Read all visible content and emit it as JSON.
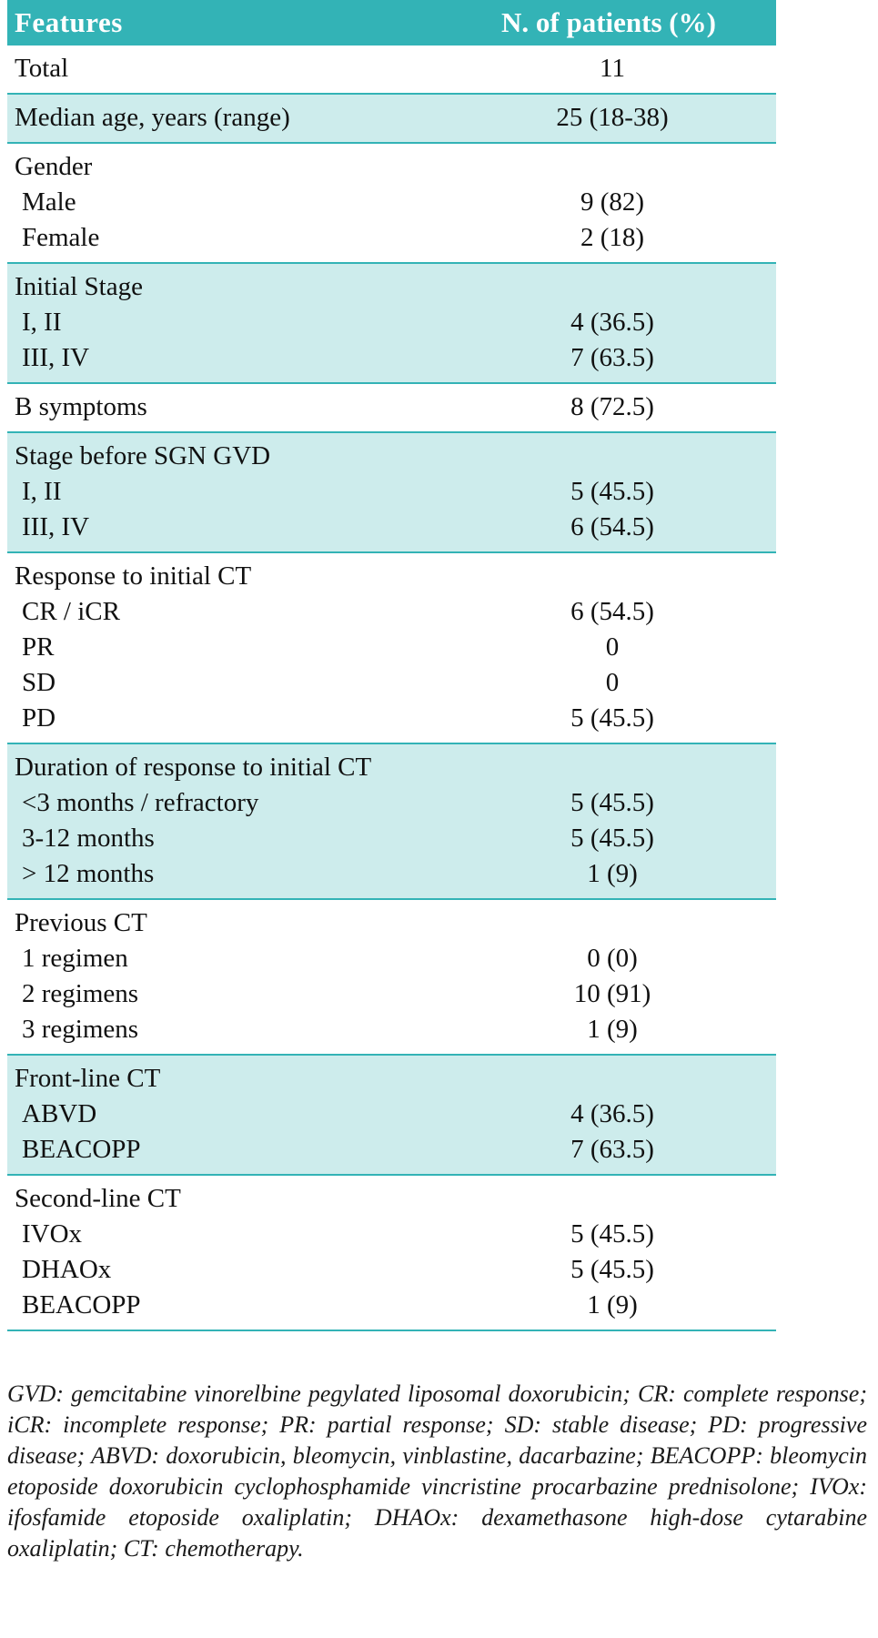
{
  "colors": {
    "header_teal": "#33b3b6",
    "row_light_teal": "#cdecec",
    "text": "#111111"
  },
  "header": {
    "feature": "Features",
    "value": "N. of patients (%)"
  },
  "sections": [
    {
      "shaded": false,
      "rows": [
        {
          "label": "Total",
          "value": "11",
          "indent": false
        }
      ]
    },
    {
      "shaded": true,
      "rows": [
        {
          "label": "Median age, years (range)",
          "value": "25 (18-38)",
          "indent": false
        }
      ]
    },
    {
      "shaded": false,
      "rows": [
        {
          "label": "Gender",
          "value": "",
          "indent": false
        },
        {
          "label": "Male",
          "value": "9 (82)",
          "indent": true
        },
        {
          "label": "Female",
          "value": "2 (18)",
          "indent": true
        }
      ]
    },
    {
      "shaded": true,
      "rows": [
        {
          "label": "Initial Stage",
          "value": "",
          "indent": false
        },
        {
          "label": "I, II",
          "value": "4 (36.5)",
          "indent": true
        },
        {
          "label": "III, IV",
          "value": "7 (63.5)",
          "indent": true
        }
      ]
    },
    {
      "shaded": false,
      "rows": [
        {
          "label": "B symptoms",
          "value": "8 (72.5)",
          "indent": false
        }
      ]
    },
    {
      "shaded": true,
      "rows": [
        {
          "label": "Stage before SGN GVD",
          "value": "",
          "indent": false
        },
        {
          "label": "I, II",
          "value": "5 (45.5)",
          "indent": true
        },
        {
          "label": "III, IV",
          "value": "6 (54.5)",
          "indent": true
        }
      ]
    },
    {
      "shaded": false,
      "rows": [
        {
          "label": "Response to initial CT",
          "value": "",
          "indent": false
        },
        {
          "label": "CR / iCR",
          "value": "6 (54.5)",
          "indent": true
        },
        {
          "label": "PR",
          "value": "0",
          "indent": true
        },
        {
          "label": "SD",
          "value": "0",
          "indent": true
        },
        {
          "label": "PD",
          "value": "5 (45.5)",
          "indent": true
        }
      ]
    },
    {
      "shaded": true,
      "rows": [
        {
          "label": "Duration of response to initial CT",
          "value": "",
          "indent": false
        },
        {
          "label": "<3 months / refractory",
          "value": "5 (45.5)",
          "indent": true
        },
        {
          "label": "3-12 months",
          "value": "5 (45.5)",
          "indent": true
        },
        {
          "label": "> 12 months",
          "value": "1 (9)",
          "indent": true
        }
      ]
    },
    {
      "shaded": false,
      "rows": [
        {
          "label": "Previous CT",
          "value": "",
          "indent": false
        },
        {
          "label": "1 regimen",
          "value": "0 (0)",
          "indent": true
        },
        {
          "label": "2 regimens",
          "value": "10 (91)",
          "indent": true
        },
        {
          "label": "3 regimens",
          "value": "1 (9)",
          "indent": true
        }
      ]
    },
    {
      "shaded": true,
      "rows": [
        {
          "label": "Front-line CT",
          "value": "",
          "indent": false
        },
        {
          "label": "ABVD",
          "value": "4 (36.5)",
          "indent": true
        },
        {
          "label": "BEACOPP",
          "value": "7 (63.5)",
          "indent": true
        }
      ]
    },
    {
      "shaded": false,
      "rows": [
        {
          "label": "Second-line CT",
          "value": "",
          "indent": false
        },
        {
          "label": "IVOx",
          "value": "5 (45.5)",
          "indent": true
        },
        {
          "label": "DHAOx",
          "value": "5 (45.5)",
          "indent": true
        },
        {
          "label": "BEACOPP",
          "value": "1 (9)",
          "indent": true
        }
      ]
    }
  ],
  "footnote": "GVD: gemcitabine vinorelbine pegylated liposomal doxorubicin; CR: complete response; iCR: incomplete response; PR: partial response; SD: stable disease; PD: progressive disease; ABVD: doxorubicin, bleomycin, vinblastine, dacarbazine; BEACOPP: bleomycin etoposide doxorubicin cyclophosphamide vincristine procarbazine prednisolone; IVOx: ifosfamide etoposide oxaliplatin; DHAOx: dexamethasone high-dose cytarabine oxaliplatin; CT: chemotherapy."
}
